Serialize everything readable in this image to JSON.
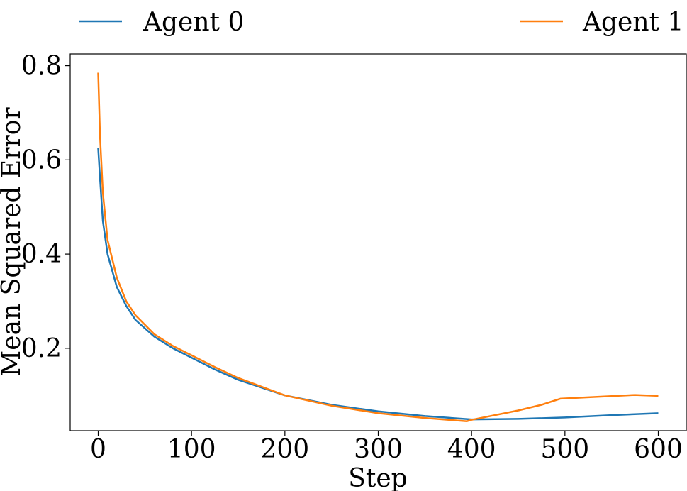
{
  "chart_data": {
    "type": "line",
    "xlabel": "Step",
    "ylabel": "Mean Squared Error",
    "xlim": [
      -30,
      630
    ],
    "ylim": [
      0.025,
      0.825
    ],
    "xticks": [
      0,
      100,
      200,
      300,
      400,
      500,
      600
    ],
    "yticks": [
      0.2,
      0.4,
      0.6,
      0.8
    ],
    "xtick_labels": [
      "0",
      "100",
      "200",
      "300",
      "400",
      "500",
      "600"
    ],
    "ytick_labels": [
      "0.2",
      "0.4",
      "0.6",
      "0.8"
    ],
    "grid": false,
    "legend_position": "top, outside plot",
    "series": [
      {
        "name": "Agent 0",
        "color": "#1f77b4",
        "x": [
          0,
          2,
          5,
          10,
          20,
          30,
          40,
          60,
          80,
          100,
          125,
          150,
          200,
          250,
          300,
          350,
          400,
          450,
          500,
          550,
          600
        ],
        "y": [
          0.625,
          0.56,
          0.47,
          0.4,
          0.33,
          0.29,
          0.26,
          0.225,
          0.2,
          0.18,
          0.155,
          0.133,
          0.1,
          0.08,
          0.066,
          0.056,
          0.049,
          0.05,
          0.053,
          0.058,
          0.062
        ]
      },
      {
        "name": "Agent 1",
        "color": "#ff7f0e",
        "x": [
          0,
          2,
          5,
          10,
          20,
          30,
          40,
          60,
          80,
          100,
          125,
          150,
          200,
          250,
          300,
          350,
          395,
          400,
          450,
          475,
          495,
          525,
          575,
          600
        ],
        "y": [
          0.785,
          0.65,
          0.53,
          0.43,
          0.35,
          0.3,
          0.27,
          0.23,
          0.205,
          0.185,
          0.16,
          0.137,
          0.1,
          0.078,
          0.062,
          0.052,
          0.045,
          0.048,
          0.068,
          0.08,
          0.093,
          0.096,
          0.101,
          0.099
        ]
      }
    ]
  }
}
